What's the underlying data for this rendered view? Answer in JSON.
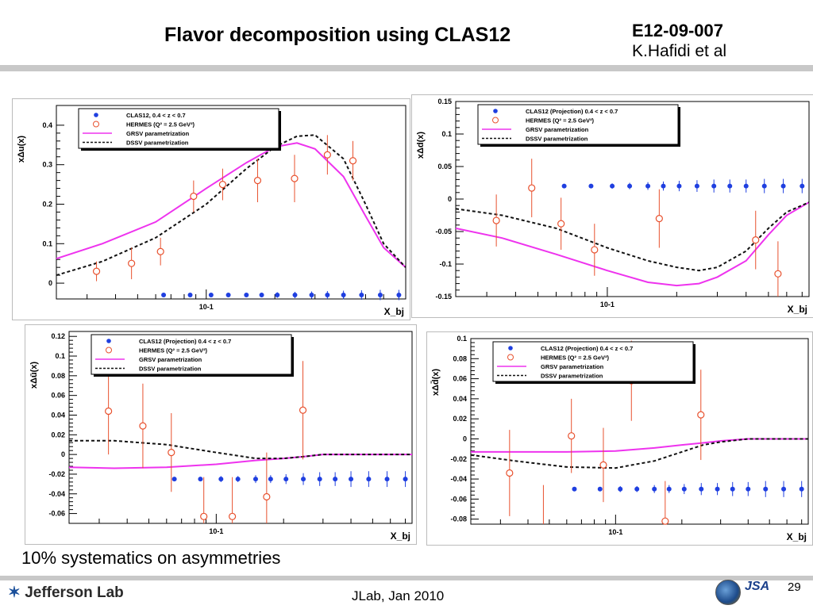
{
  "header": {
    "title": "Flavor decomposition using CLAS12",
    "experiment_code": "E12-09-007",
    "author": "K.Hafidi et al"
  },
  "caption": "10% systematics on asymmetries",
  "footer": {
    "date": "JLab, Jan 2010",
    "page_number": "29",
    "logo_text": "Jefferson Lab",
    "partner_logo_text": "JSA"
  },
  "colors": {
    "clas12": "#1f3fe0",
    "hermes": "#e8512e",
    "grsv": "#ee33ee",
    "dssv": "#111111"
  },
  "chart_data": [
    {
      "type": "scatter",
      "ylabel": "xΔu(x)",
      "xlabel": "X_bj",
      "x_scale": "log",
      "xlim": [
        0.022,
        0.75
      ],
      "ylim": [
        -0.04,
        0.45
      ],
      "yticks": [
        0,
        0.1,
        0.2,
        0.3,
        0.4
      ],
      "ytick_labels": [
        "0",
        "0.1",
        "0.2",
        "0.3",
        "0.4"
      ],
      "xtick_label": "10^-1",
      "legend": [
        {
          "label": "CLAS12, 0.4 < z < 0.7",
          "style": "clas12"
        },
        {
          "label": "HERMES (Q² = 2.5 GeV²)",
          "style": "hermes"
        },
        {
          "label": "GRSV parametrization",
          "style": "grsv"
        },
        {
          "label": "DSSV parametrization",
          "style": "dssv"
        }
      ],
      "clas12": {
        "x": [
          0.065,
          0.085,
          0.105,
          0.125,
          0.15,
          0.175,
          0.205,
          0.245,
          0.29,
          0.34,
          0.4,
          0.48,
          0.58,
          0.7
        ],
        "y": [
          -0.03,
          -0.03,
          -0.03,
          -0.03,
          -0.03,
          -0.03,
          -0.03,
          -0.03,
          -0.03,
          -0.03,
          -0.03,
          -0.03,
          -0.03,
          -0.03
        ],
        "err": [
          0.004,
          0.004,
          0.004,
          0.005,
          0.005,
          0.006,
          0.007,
          0.008,
          0.009,
          0.01,
          0.011,
          0.012,
          0.013,
          0.013
        ]
      },
      "hermes": {
        "x": [
          0.033,
          0.047,
          0.063,
          0.088,
          0.118,
          0.168,
          0.244,
          0.34,
          0.44
        ],
        "y": [
          0.03,
          0.05,
          0.08,
          0.22,
          0.25,
          0.26,
          0.265,
          0.325,
          0.31
        ],
        "err": [
          0.025,
          0.04,
          0.035,
          0.04,
          0.04,
          0.055,
          0.06,
          0.05,
          0.05
        ]
      },
      "grsv": {
        "x": [
          0.022,
          0.035,
          0.06,
          0.1,
          0.15,
          0.2,
          0.25,
          0.3,
          0.4,
          0.5,
          0.6,
          0.75
        ],
        "y": [
          0.062,
          0.1,
          0.155,
          0.24,
          0.305,
          0.345,
          0.355,
          0.34,
          0.27,
          0.17,
          0.09,
          0.04
        ]
      },
      "dssv": {
        "x": [
          0.022,
          0.035,
          0.06,
          0.1,
          0.15,
          0.2,
          0.25,
          0.3,
          0.4,
          0.5,
          0.6,
          0.75
        ],
        "y": [
          0.02,
          0.055,
          0.115,
          0.2,
          0.29,
          0.345,
          0.372,
          0.375,
          0.315,
          0.2,
          0.1,
          0.04
        ]
      }
    },
    {
      "type": "scatter",
      "ylabel": "xΔd(x)",
      "xlabel": "X_bj",
      "x_scale": "log",
      "xlim": [
        0.022,
        0.75
      ],
      "ylim": [
        -0.15,
        0.15
      ],
      "yticks": [
        -0.15,
        -0.1,
        -0.05,
        0,
        0.05,
        0.1,
        0.15
      ],
      "ytick_labels": [
        "-0.15",
        "-0.1",
        "-0.05",
        "0",
        "0.05",
        "0.1",
        "0.15"
      ],
      "xtick_label": "10^-1",
      "legend": [
        {
          "label": "CLAS12 (Projection) 0.4 < z < 0.7",
          "style": "clas12"
        },
        {
          "label": "HERMES (Q² = 2.5 GeV²)",
          "style": "hermes"
        },
        {
          "label": "GRSV parametrization",
          "style": "grsv"
        },
        {
          "label": "DSSV parametrization",
          "style": "dssv"
        }
      ],
      "clas12": {
        "x": [
          0.065,
          0.085,
          0.105,
          0.125,
          0.15,
          0.175,
          0.205,
          0.245,
          0.29,
          0.34,
          0.4,
          0.48,
          0.58,
          0.7
        ],
        "y": [
          0.02,
          0.02,
          0.02,
          0.02,
          0.02,
          0.02,
          0.02,
          0.02,
          0.02,
          0.02,
          0.02,
          0.02,
          0.02,
          0.02
        ],
        "err": [
          0.003,
          0.003,
          0.004,
          0.005,
          0.006,
          0.007,
          0.008,
          0.009,
          0.01,
          0.01,
          0.01,
          0.011,
          0.011,
          0.011
        ]
      },
      "hermes": {
        "x": [
          0.033,
          0.047,
          0.063,
          0.088,
          0.168,
          0.44,
          0.55
        ],
        "y": [
          -0.033,
          0.017,
          -0.038,
          -0.078,
          -0.03,
          -0.063,
          -0.115
        ],
        "err": [
          0.04,
          0.045,
          0.04,
          0.04,
          0.045,
          0.045,
          0.05
        ]
      },
      "grsv": {
        "x": [
          0.022,
          0.035,
          0.06,
          0.1,
          0.15,
          0.2,
          0.25,
          0.3,
          0.4,
          0.5,
          0.6,
          0.75
        ],
        "y": [
          -0.045,
          -0.06,
          -0.085,
          -0.11,
          -0.128,
          -0.133,
          -0.13,
          -0.12,
          -0.095,
          -0.055,
          -0.025,
          -0.005
        ]
      },
      "dssv": {
        "x": [
          0.022,
          0.035,
          0.06,
          0.1,
          0.15,
          0.2,
          0.25,
          0.3,
          0.4,
          0.5,
          0.6,
          0.75
        ],
        "y": [
          -0.015,
          -0.025,
          -0.045,
          -0.075,
          -0.095,
          -0.105,
          -0.11,
          -0.105,
          -0.08,
          -0.045,
          -0.02,
          -0.005
        ]
      }
    },
    {
      "type": "scatter",
      "ylabel": "xΔū(x)",
      "xlabel": "X_bj",
      "x_scale": "log",
      "xlim": [
        0.022,
        0.75
      ],
      "ylim": [
        -0.07,
        0.125
      ],
      "yticks": [
        -0.06,
        -0.04,
        -0.02,
        0,
        0.02,
        0.04,
        0.06,
        0.08,
        0.1,
        0.12
      ],
      "ytick_labels": [
        "-0.06",
        "-0.04",
        "-0.02",
        "0",
        "0.02",
        "0.04",
        "0.06",
        "0.08",
        "0.1",
        "0.12"
      ],
      "xtick_label": "10^-1",
      "legend": [
        {
          "label": "CLAS12 (Projection) 0.4 < z < 0.7",
          "style": "clas12"
        },
        {
          "label": "HERMES (Q² = 2.5 GeV²)",
          "style": "hermes"
        },
        {
          "label": "GRSV parametrization",
          "style": "grsv"
        },
        {
          "label": "DSSV parametrization",
          "style": "dssv"
        }
      ],
      "clas12": {
        "x": [
          0.065,
          0.085,
          0.105,
          0.125,
          0.15,
          0.175,
          0.205,
          0.245,
          0.29,
          0.34,
          0.4,
          0.48,
          0.58,
          0.7
        ],
        "y": [
          -0.025,
          -0.025,
          -0.025,
          -0.025,
          -0.025,
          -0.025,
          -0.025,
          -0.025,
          -0.025,
          -0.025,
          -0.025,
          -0.025,
          -0.025,
          -0.025
        ],
        "err": [
          0.002,
          0.002,
          0.003,
          0.003,
          0.004,
          0.004,
          0.005,
          0.006,
          0.007,
          0.007,
          0.008,
          0.008,
          0.008,
          0.008
        ]
      },
      "hermes": {
        "x": [
          0.033,
          0.047,
          0.063,
          0.088,
          0.118,
          0.168,
          0.244
        ],
        "y": [
          0.044,
          0.029,
          0.002,
          -0.063,
          -0.063,
          -0.043,
          0.045
        ],
        "err": [
          0.044,
          0.043,
          0.04,
          0.04,
          0.04,
          0.045,
          0.05
        ]
      },
      "grsv": {
        "x": [
          0.022,
          0.035,
          0.06,
          0.1,
          0.15,
          0.2,
          0.25,
          0.3,
          0.4,
          0.5,
          0.6,
          0.75
        ],
        "y": [
          -0.013,
          -0.014,
          -0.013,
          -0.01,
          -0.006,
          -0.004,
          -0.002,
          0,
          0,
          0,
          0,
          0
        ]
      },
      "dssv": {
        "x": [
          0.022,
          0.035,
          0.06,
          0.1,
          0.15,
          0.2,
          0.25,
          0.3,
          0.4,
          0.5,
          0.6,
          0.75
        ],
        "y": [
          0.014,
          0.014,
          0.01,
          0.002,
          -0.004,
          -0.004,
          -0.002,
          0,
          0,
          0,
          0,
          0
        ]
      }
    },
    {
      "type": "scatter",
      "ylabel": "xΔd̄(x)",
      "xlabel": "X_bj",
      "x_scale": "log",
      "xlim": [
        0.022,
        0.75
      ],
      "ylim": [
        -0.085,
        0.1
      ],
      "yticks": [
        -0.08,
        -0.06,
        -0.04,
        -0.02,
        0,
        0.02,
        0.04,
        0.06,
        0.08,
        0.1
      ],
      "ytick_labels": [
        "-0.08",
        "-0.06",
        "-0.04",
        "-0.02",
        "0",
        "0.02",
        "0.04",
        "0.06",
        "0.08",
        "0.1"
      ],
      "xtick_label": "10^-1",
      "legend": [
        {
          "label": "CLAS12 (Projection) 0.4 < z < 0.7",
          "style": "clas12"
        },
        {
          "label": "HERMES (Q² = 2.5 GeV²)",
          "style": "hermes"
        },
        {
          "label": "GRSV parametrization",
          "style": "grsv"
        },
        {
          "label": "DSSV parametrization",
          "style": "dssv"
        }
      ],
      "clas12": {
        "x": [
          0.065,
          0.085,
          0.105,
          0.125,
          0.15,
          0.175,
          0.205,
          0.245,
          0.29,
          0.34,
          0.4,
          0.48,
          0.58,
          0.7
        ],
        "y": [
          -0.05,
          -0.05,
          -0.05,
          -0.05,
          -0.05,
          -0.05,
          -0.05,
          -0.05,
          -0.05,
          -0.05,
          -0.05,
          -0.05,
          -0.05,
          -0.05
        ],
        "err": [
          0.002,
          0.002,
          0.003,
          0.003,
          0.004,
          0.004,
          0.005,
          0.006,
          0.006,
          0.007,
          0.007,
          0.008,
          0.008,
          0.008
        ]
      },
      "hermes": {
        "x": [
          0.033,
          0.047,
          0.063,
          0.088,
          0.118,
          0.168,
          0.244
        ],
        "y": [
          -0.034,
          -0.086,
          0.003,
          -0.026,
          0.058,
          -0.082,
          0.024
        ],
        "err": [
          0.043,
          0.04,
          0.037,
          0.037,
          0.04,
          0.04,
          0.045
        ]
      },
      "grsv": {
        "x": [
          0.022,
          0.035,
          0.06,
          0.1,
          0.15,
          0.2,
          0.25,
          0.3,
          0.4,
          0.5,
          0.6,
          0.75
        ],
        "y": [
          -0.013,
          -0.013,
          -0.013,
          -0.012,
          -0.009,
          -0.006,
          -0.004,
          -0.002,
          0,
          0,
          0,
          0
        ]
      },
      "dssv": {
        "x": [
          0.022,
          0.035,
          0.06,
          0.1,
          0.15,
          0.2,
          0.25,
          0.3,
          0.4,
          0.5,
          0.6,
          0.75
        ],
        "y": [
          -0.016,
          -0.022,
          -0.028,
          -0.029,
          -0.022,
          -0.013,
          -0.006,
          -0.003,
          0,
          0,
          0,
          0
        ]
      }
    }
  ]
}
